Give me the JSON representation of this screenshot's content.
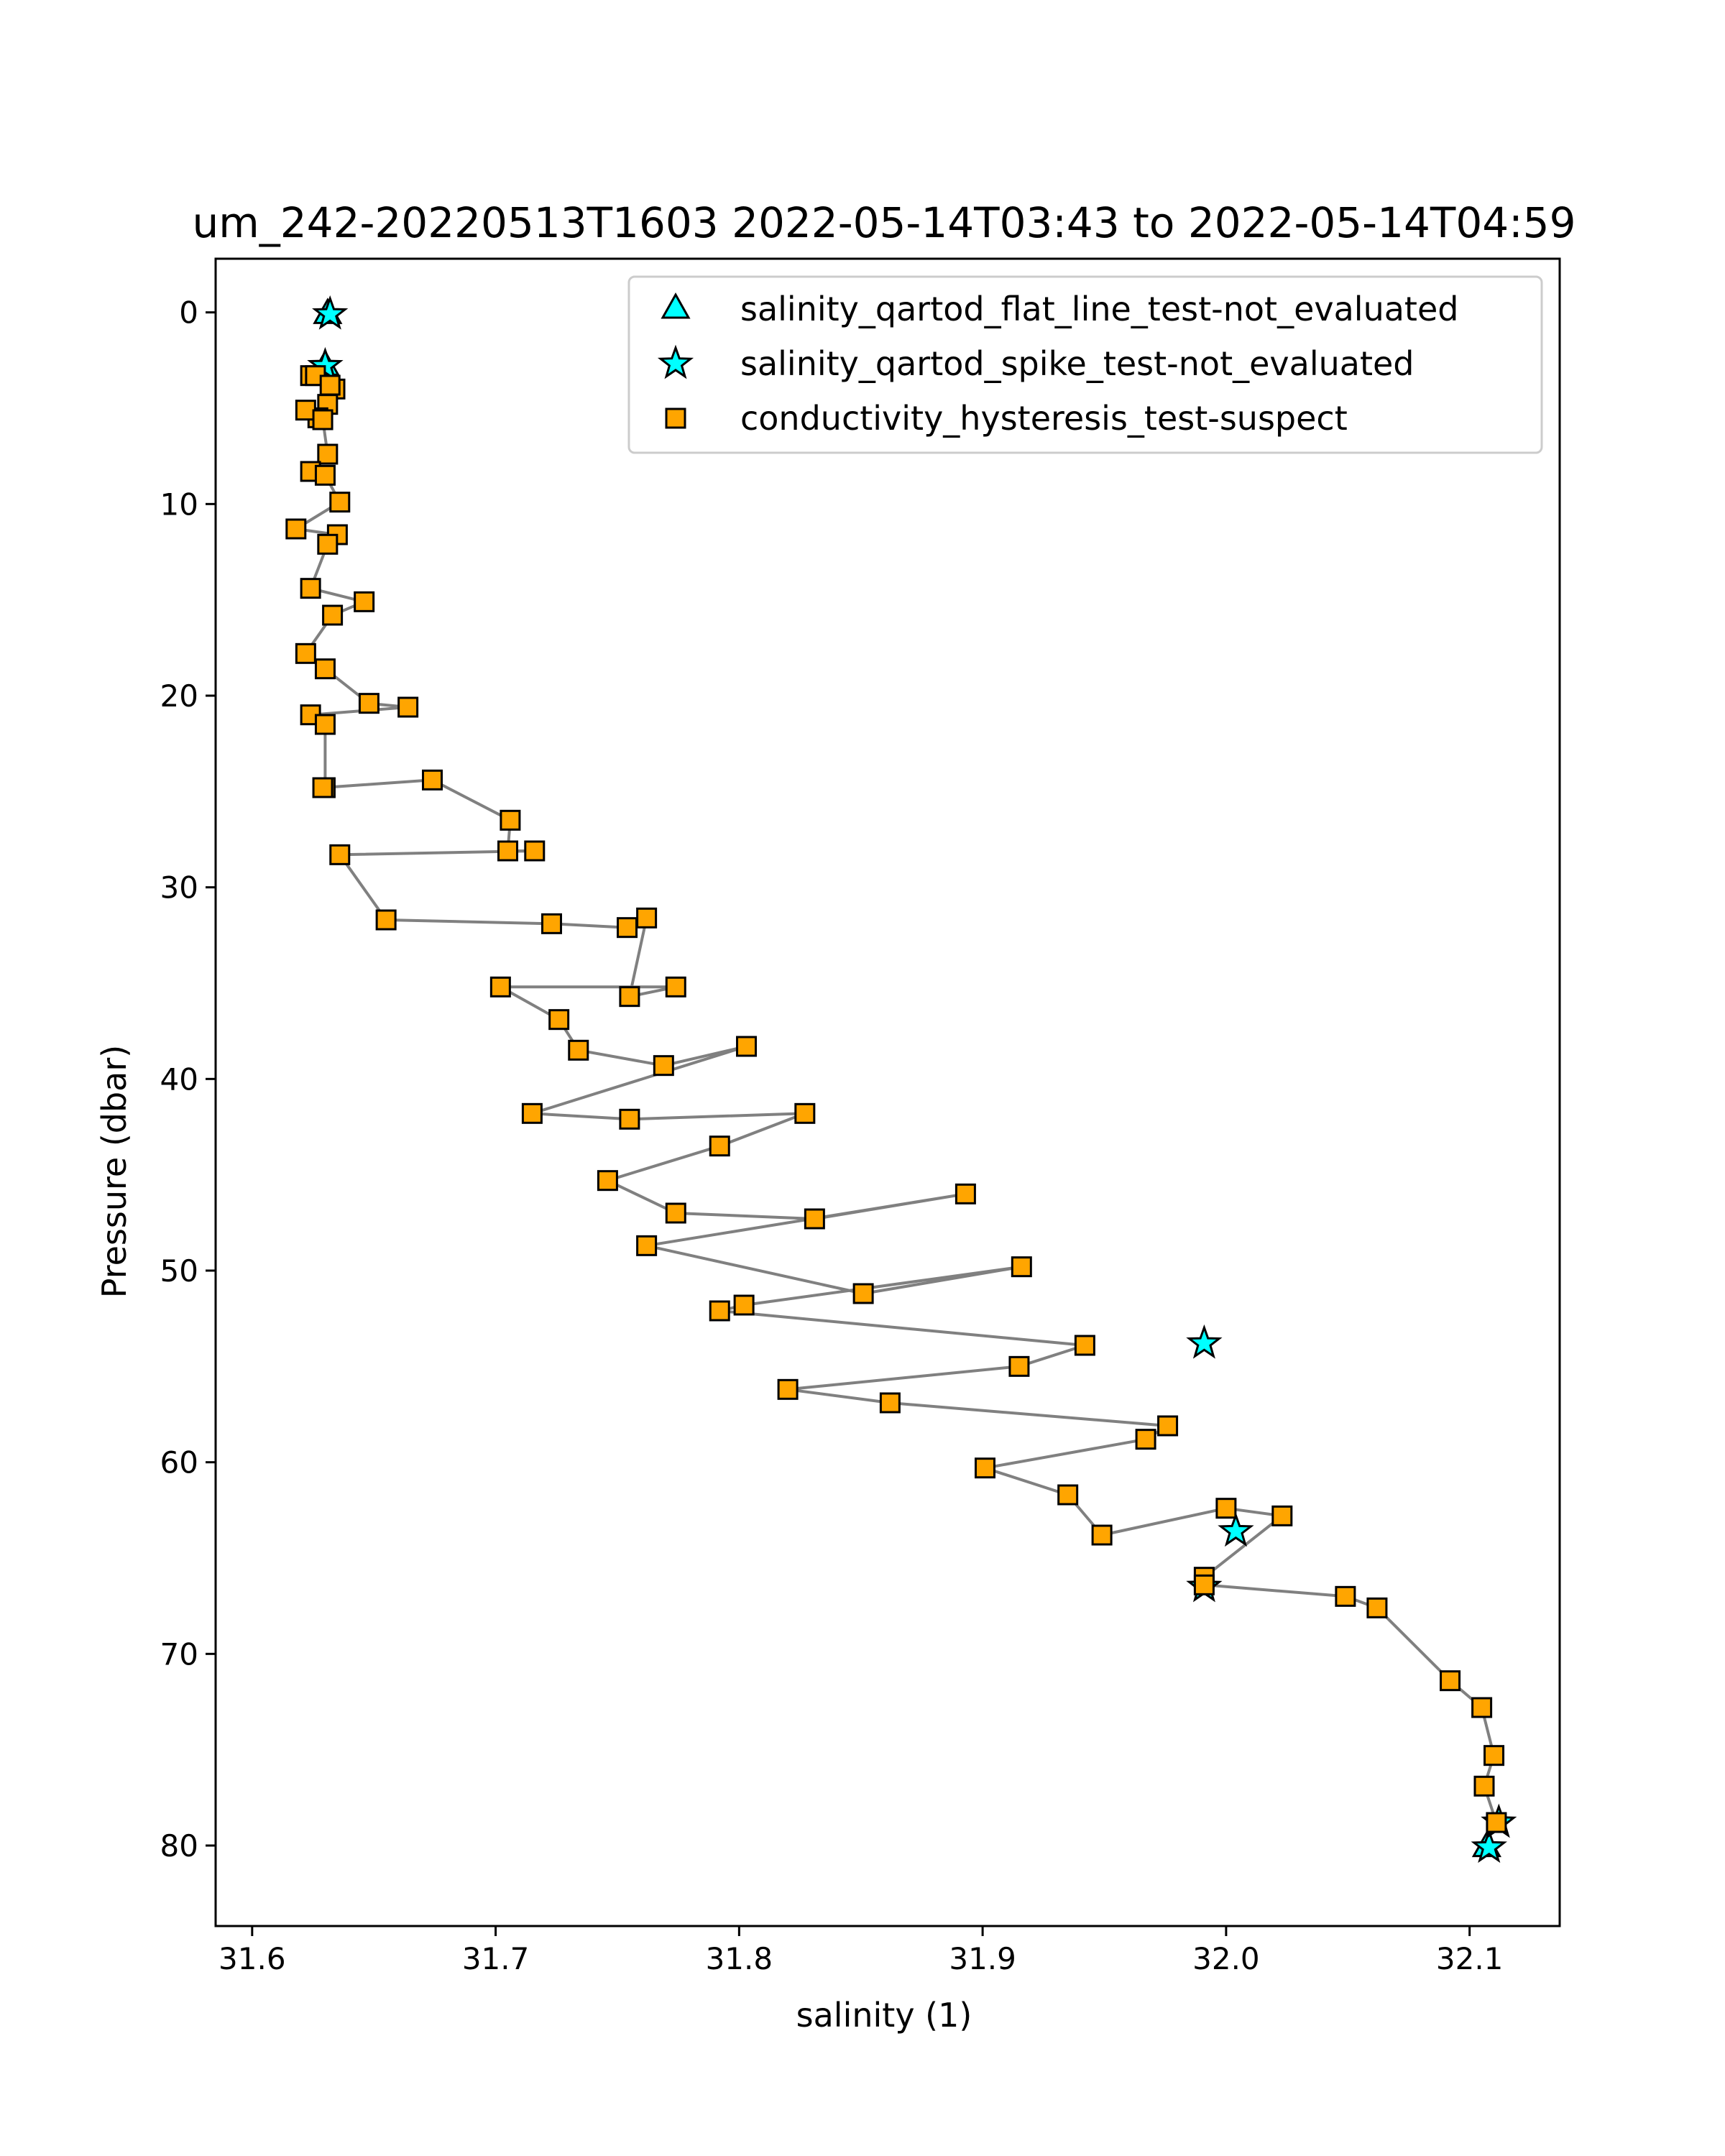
{
  "chart_data": {
    "type": "scatter",
    "title": "um_242-20220513T1603 2022-05-14T03:43 to 2022-05-14T04:59",
    "xlabel": "salinity (1)",
    "ylabel": "Pressure (dbar)",
    "xlim": [
      31.585,
      32.137
    ],
    "ylim": [
      84.2,
      -2.8
    ],
    "y_inverted": true,
    "grid": false,
    "legend_position": "top-right",
    "xticks": [
      31.6,
      31.7,
      31.8,
      31.9,
      32.0,
      32.1
    ],
    "xtick_labels": [
      "31.6",
      "31.7",
      "31.8",
      "31.9",
      "32.0",
      "32.1"
    ],
    "yticks": [
      0,
      10,
      20,
      30,
      40,
      50,
      60,
      70,
      80
    ],
    "ytick_labels": [
      "0",
      "10",
      "20",
      "30",
      "40",
      "50",
      "60",
      "70",
      "80"
    ],
    "colors": {
      "profile_line": "#808080",
      "flat_line_marker": "#00ffff",
      "spike_marker": "#00ffff",
      "hysteresis_marker": "#ffa500",
      "marker_edge": "#000000"
    },
    "series": [
      {
        "name": "salinity_qartod_flat_line_test-not_evaluated",
        "marker": "triangle",
        "color": "#00ffff",
        "points": [
          [
            31.631,
            0.1
          ],
          [
            31.63,
            2.8
          ],
          [
            32.107,
            80.1
          ]
        ]
      },
      {
        "name": "salinity_qartod_spike_test-not_evaluated",
        "marker": "star",
        "color": "#00ffff",
        "points": [
          [
            31.632,
            0.1
          ],
          [
            31.63,
            2.8
          ],
          [
            31.991,
            53.8
          ],
          [
            32.004,
            63.6
          ],
          [
            31.991,
            66.5
          ],
          [
            32.108,
            80.1
          ],
          [
            32.112,
            78.8
          ]
        ]
      },
      {
        "name": "conductivity_hysteresis_test-suspect",
        "marker": "square",
        "color": "#ffa500",
        "points": [
          [
            31.624,
            3.3
          ],
          [
            31.626,
            3.3
          ],
          [
            31.634,
            4.0
          ],
          [
            31.632,
            3.8
          ],
          [
            31.631,
            4.8
          ],
          [
            31.627,
            5.5
          ],
          [
            31.622,
            5.1
          ],
          [
            31.629,
            5.6
          ],
          [
            31.631,
            7.4
          ],
          [
            31.624,
            8.3
          ],
          [
            31.63,
            8.5
          ],
          [
            31.636,
            9.9
          ],
          [
            31.618,
            11.3
          ],
          [
            31.635,
            11.6
          ],
          [
            31.631,
            12.1
          ],
          [
            31.624,
            14.4
          ],
          [
            31.646,
            15.1
          ],
          [
            31.633,
            15.8
          ],
          [
            31.622,
            17.8
          ],
          [
            31.63,
            18.6
          ],
          [
            31.648,
            20.4
          ],
          [
            31.664,
            20.6
          ],
          [
            31.624,
            21.0
          ],
          [
            31.63,
            21.5
          ],
          [
            31.63,
            24.8
          ],
          [
            31.629,
            24.8
          ],
          [
            31.674,
            24.4
          ],
          [
            31.706,
            26.5
          ],
          [
            31.705,
            28.1
          ],
          [
            31.716,
            28.1
          ],
          [
            31.636,
            28.3
          ],
          [
            31.655,
            31.7
          ],
          [
            31.723,
            31.9
          ],
          [
            31.754,
            32.1
          ],
          [
            31.762,
            31.6
          ],
          [
            31.755,
            35.7
          ],
          [
            31.774,
            35.2
          ],
          [
            31.702,
            35.2
          ],
          [
            31.726,
            36.9
          ],
          [
            31.734,
            38.5
          ],
          [
            31.769,
            39.3
          ],
          [
            31.803,
            38.3
          ],
          [
            31.715,
            41.8
          ],
          [
            31.755,
            42.1
          ],
          [
            31.827,
            41.8
          ],
          [
            31.792,
            43.5
          ],
          [
            31.746,
            45.3
          ],
          [
            31.774,
            47.0
          ],
          [
            31.831,
            47.3
          ],
          [
            31.893,
            46.0
          ],
          [
            31.762,
            48.7
          ],
          [
            31.851,
            51.2
          ],
          [
            31.916,
            49.8
          ],
          [
            31.802,
            51.8
          ],
          [
            31.792,
            52.1
          ],
          [
            31.942,
            53.9
          ],
          [
            31.915,
            55.0
          ],
          [
            31.82,
            56.2
          ],
          [
            31.862,
            56.9
          ],
          [
            31.976,
            58.1
          ],
          [
            31.967,
            58.8
          ],
          [
            31.901,
            60.3
          ],
          [
            31.935,
            61.7
          ],
          [
            31.949,
            63.8
          ],
          [
            32.0,
            62.4
          ],
          [
            32.023,
            62.8
          ],
          [
            31.991,
            66.0
          ],
          [
            31.991,
            66.4
          ],
          [
            32.049,
            67.0
          ],
          [
            32.062,
            67.6
          ],
          [
            32.092,
            71.4
          ],
          [
            32.105,
            72.8
          ],
          [
            32.11,
            75.3
          ],
          [
            32.106,
            76.9
          ],
          [
            32.111,
            78.8
          ]
        ]
      }
    ]
  }
}
